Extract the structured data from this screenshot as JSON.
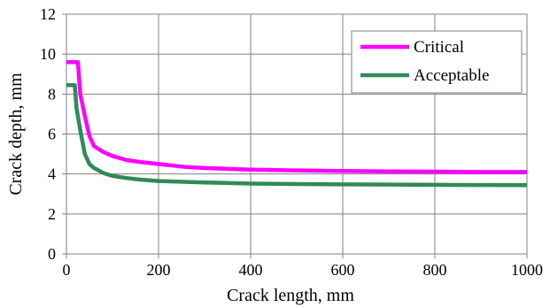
{
  "chart_data": {
    "type": "line",
    "title": "",
    "xlabel": "Crack length, mm",
    "ylabel": "Crack depth, mm",
    "xlim": [
      0,
      1000
    ],
    "ylim": [
      0,
      12
    ],
    "x_ticks": [
      0,
      200,
      400,
      600,
      800,
      1000
    ],
    "y_ticks": [
      0,
      2,
      4,
      6,
      8,
      10,
      12
    ],
    "grid": true,
    "legend_position": "top-right",
    "series": [
      {
        "name": "Critical",
        "color": "#ff00ff",
        "points": [
          [
            0,
            9.6
          ],
          [
            25,
            9.6
          ],
          [
            30,
            8.0
          ],
          [
            40,
            6.9
          ],
          [
            50,
            5.9
          ],
          [
            60,
            5.4
          ],
          [
            80,
            5.1
          ],
          [
            100,
            4.9
          ],
          [
            130,
            4.7
          ],
          [
            160,
            4.6
          ],
          [
            200,
            4.5
          ],
          [
            260,
            4.35
          ],
          [
            300,
            4.3
          ],
          [
            400,
            4.22
          ],
          [
            500,
            4.18
          ],
          [
            600,
            4.15
          ],
          [
            700,
            4.13
          ],
          [
            800,
            4.12
          ],
          [
            900,
            4.1
          ],
          [
            1000,
            4.1
          ]
        ]
      },
      {
        "name": "Acceptable",
        "color": "#2e8b57",
        "points": [
          [
            0,
            8.45
          ],
          [
            18,
            8.45
          ],
          [
            22,
            7.3
          ],
          [
            30,
            6.2
          ],
          [
            40,
            5.0
          ],
          [
            50,
            4.5
          ],
          [
            60,
            4.3
          ],
          [
            80,
            4.05
          ],
          [
            100,
            3.9
          ],
          [
            130,
            3.8
          ],
          [
            160,
            3.72
          ],
          [
            200,
            3.65
          ],
          [
            300,
            3.58
          ],
          [
            400,
            3.52
          ],
          [
            500,
            3.5
          ],
          [
            600,
            3.48
          ],
          [
            700,
            3.47
          ],
          [
            800,
            3.46
          ],
          [
            900,
            3.45
          ],
          [
            1000,
            3.44
          ]
        ]
      }
    ]
  }
}
